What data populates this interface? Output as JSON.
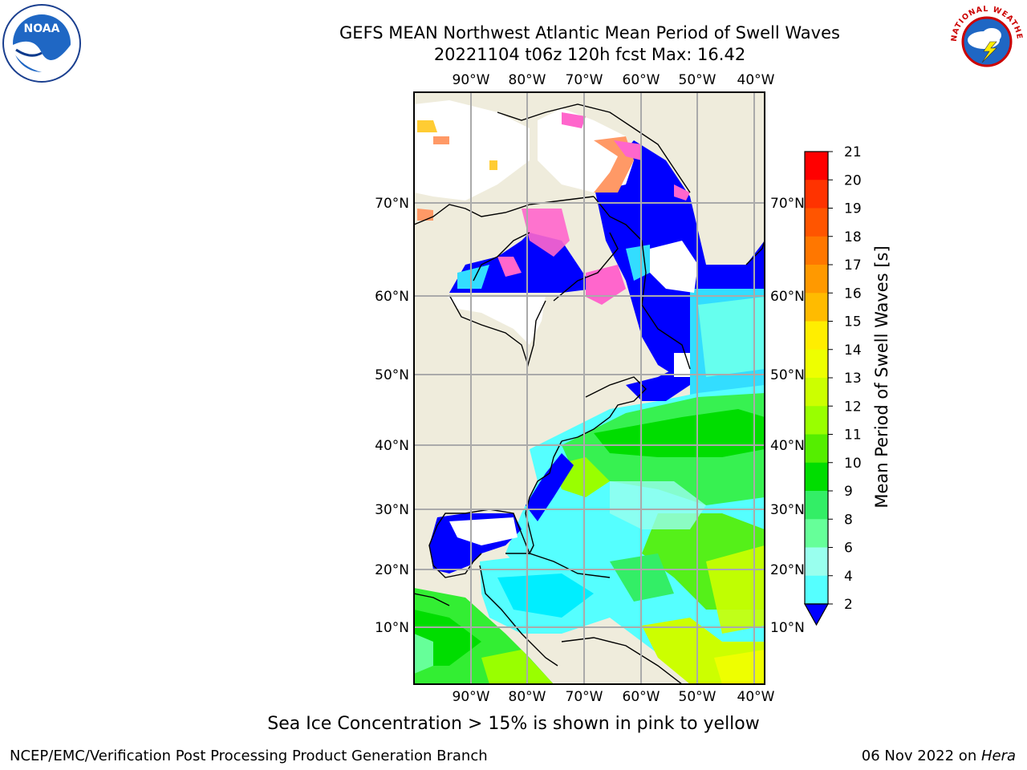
{
  "header": {
    "title": "GEFS MEAN Northwest Atlantic Mean Period of Swell Waves",
    "subtitle": "20221104 t06z 120h fcst   Max: 16.42"
  },
  "logos": {
    "left": {
      "icon": "noaa-logo",
      "text": "NOAA"
    },
    "right": {
      "icon": "nws-logo",
      "text": "NATIONAL WEATHER SERVICE"
    }
  },
  "map": {
    "projection": "lat-lon",
    "lon_ticks": [
      "90°W",
      "80°W",
      "70°W",
      "60°W",
      "50°W",
      "40°W"
    ],
    "lat_ticks": [
      "70°N",
      "60°N",
      "50°N",
      "40°N",
      "30°N",
      "20°N",
      "10°N"
    ],
    "land_color": "#efecdc",
    "ice_colors": [
      "#ff66cc",
      "#ff9966",
      "#ffcc33"
    ]
  },
  "colorbar": {
    "label": "Mean Period of Swell Waves [s]",
    "ticks": [
      "21",
      "20",
      "19",
      "18",
      "17",
      "16",
      "15",
      "14",
      "13",
      "12",
      "11",
      "10",
      "9",
      "8",
      "6",
      "4",
      "2"
    ],
    "colors": [
      "#ff0000",
      "#ff3300",
      "#ff5500",
      "#ff7700",
      "#ff9900",
      "#ffbb00",
      "#ffee00",
      "#eeff00",
      "#ccff00",
      "#99ff00",
      "#55ee00",
      "#00dd00",
      "#33ee66",
      "#66ff99",
      "#99ffee",
      "#55ffff",
      "#00eeff",
      "#0077ff"
    ],
    "extend_color": "#0000ff"
  },
  "footer": {
    "note": "Sea Ice Concentration > 15% is shown in pink to yellow",
    "credit": "NCEP/EMC/Verification Post Processing Product Generation Branch",
    "date_prefix": "06 Nov 2022 on ",
    "host": "Hera"
  }
}
